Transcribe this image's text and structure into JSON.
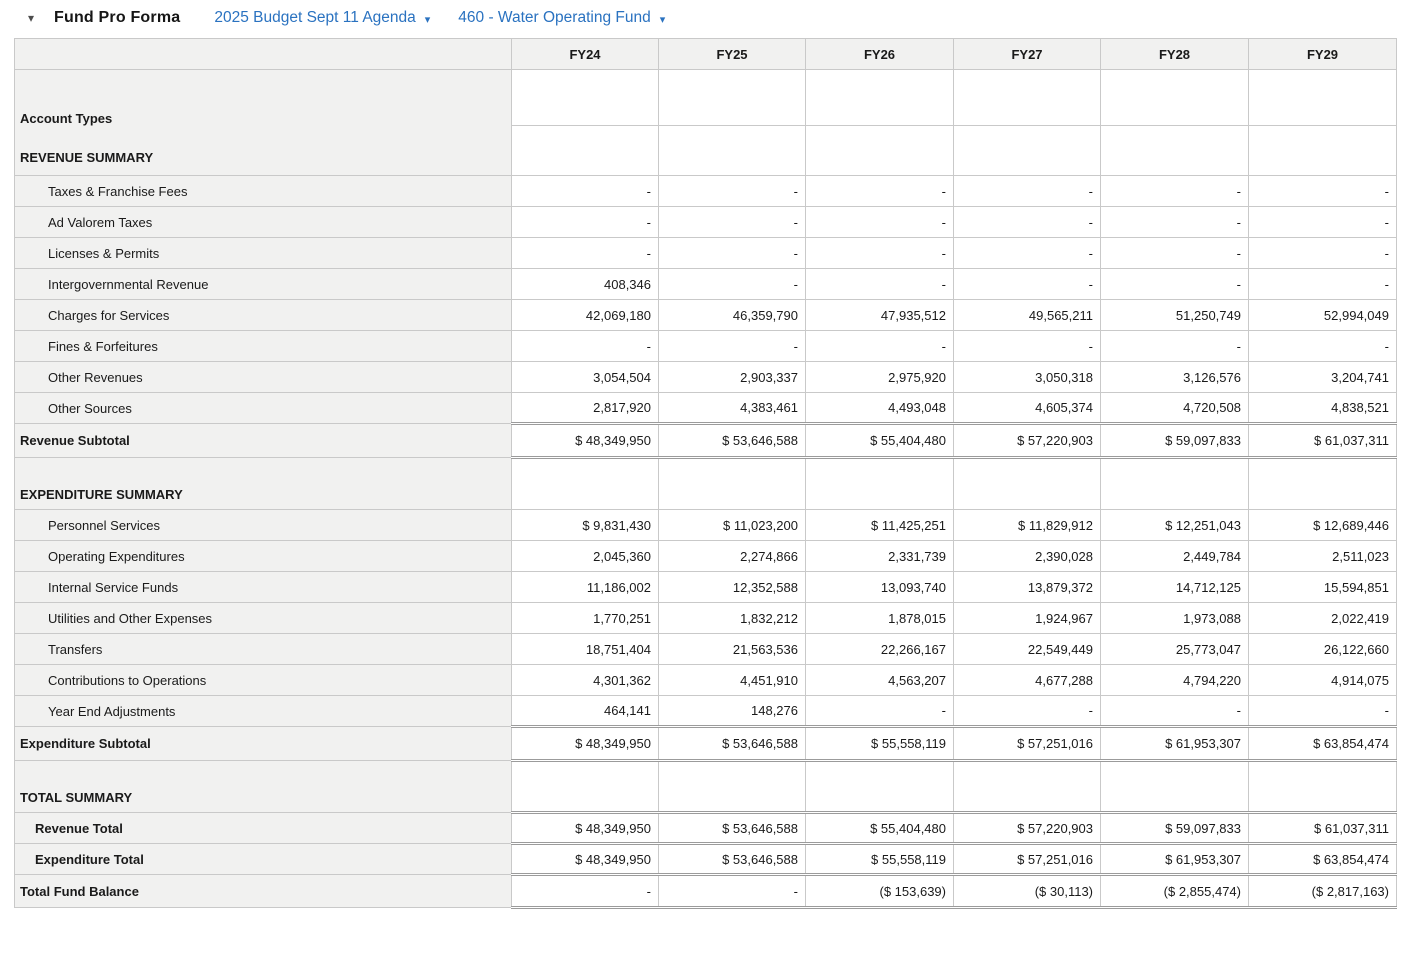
{
  "header": {
    "collapse_icon": "▾",
    "title": "Fund Pro Forma",
    "dropdowns": [
      {
        "label": "2025 Budget Sept 11 Agenda",
        "caret": "▾"
      },
      {
        "label": "460 - Water Operating Fund",
        "caret": "▾"
      }
    ]
  },
  "colors": {
    "link_blue": "#2a72c0",
    "label_background": "#f1f1f0",
    "grid_border": "#c9c9c9",
    "double_border": "#9b9b9b"
  },
  "table": {
    "columns": [
      "FY24",
      "FY25",
      "FY26",
      "FY27",
      "FY28",
      "FY29"
    ],
    "rows": [
      {
        "kind": "dualheader",
        "labels": [
          "Account Types",
          "REVENUE SUMMARY"
        ],
        "h1": 56,
        "h2": 50
      },
      {
        "kind": "item",
        "label": "Taxes & Franchise Fees",
        "values": [
          "-",
          "-",
          "-",
          "-",
          "-",
          "-"
        ]
      },
      {
        "kind": "item",
        "label": "Ad Valorem Taxes",
        "values": [
          "-",
          "-",
          "-",
          "-",
          "-",
          "-"
        ]
      },
      {
        "kind": "item",
        "label": "Licenses & Permits",
        "values": [
          "-",
          "-",
          "-",
          "-",
          "-",
          "-"
        ]
      },
      {
        "kind": "item",
        "label": "Intergovernmental Revenue",
        "values": [
          "408,346",
          "-",
          "-",
          "-",
          "-",
          "-"
        ]
      },
      {
        "kind": "item",
        "label": "Charges for Services",
        "values": [
          "42,069,180",
          "46,359,790",
          "47,935,512",
          "49,565,211",
          "51,250,749",
          "52,994,049"
        ]
      },
      {
        "kind": "item",
        "label": "Fines & Forfeitures",
        "values": [
          "-",
          "-",
          "-",
          "-",
          "-",
          "-"
        ]
      },
      {
        "kind": "item",
        "label": "Other Revenues",
        "values": [
          "3,054,504",
          "2,903,337",
          "2,975,920",
          "3,050,318",
          "3,126,576",
          "3,204,741"
        ]
      },
      {
        "kind": "item",
        "label": "Other Sources",
        "values": [
          "2,817,920",
          "4,383,461",
          "4,493,048",
          "4,605,374",
          "4,720,508",
          "4,838,521"
        ]
      },
      {
        "kind": "subtotal",
        "label": "Revenue Subtotal",
        "values": [
          "$ 48,349,950",
          "$ 53,646,588",
          "$ 55,404,480",
          "$ 57,220,903",
          "$ 59,097,833",
          "$ 61,037,311"
        ]
      },
      {
        "kind": "section",
        "label": "EXPENDITURE SUMMARY",
        "h": 52
      },
      {
        "kind": "item",
        "label": "Personnel Services",
        "values": [
          "$ 9,831,430",
          "$ 11,023,200",
          "$ 11,425,251",
          "$ 11,829,912",
          "$ 12,251,043",
          "$ 12,689,446"
        ]
      },
      {
        "kind": "item",
        "label": "Operating Expenditures",
        "values": [
          "2,045,360",
          "2,274,866",
          "2,331,739",
          "2,390,028",
          "2,449,784",
          "2,511,023"
        ]
      },
      {
        "kind": "item",
        "label": "Internal Service Funds",
        "values": [
          "11,186,002",
          "12,352,588",
          "13,093,740",
          "13,879,372",
          "14,712,125",
          "15,594,851"
        ]
      },
      {
        "kind": "item",
        "label": "Utilities and Other Expenses",
        "values": [
          "1,770,251",
          "1,832,212",
          "1,878,015",
          "1,924,967",
          "1,973,088",
          "2,022,419"
        ]
      },
      {
        "kind": "item",
        "label": "Transfers",
        "values": [
          "18,751,404",
          "21,563,536",
          "22,266,167",
          "22,549,449",
          "25,773,047",
          "26,122,660"
        ]
      },
      {
        "kind": "item",
        "label": "Contributions to Operations",
        "values": [
          "4,301,362",
          "4,451,910",
          "4,563,207",
          "4,677,288",
          "4,794,220",
          "4,914,075"
        ]
      },
      {
        "kind": "item",
        "label": "Year End Adjustments",
        "values": [
          "464,141",
          "148,276",
          "-",
          "-",
          "-",
          "-"
        ]
      },
      {
        "kind": "subtotal",
        "label": "Expenditure Subtotal",
        "values": [
          "$ 48,349,950",
          "$ 53,646,588",
          "$ 55,558,119",
          "$ 57,251,016",
          "$ 61,953,307",
          "$ 63,854,474"
        ]
      },
      {
        "kind": "section",
        "label": "TOTAL SUMMARY",
        "h": 52
      },
      {
        "kind": "total",
        "label": "Revenue Total",
        "values": [
          "$ 48,349,950",
          "$ 53,646,588",
          "$ 55,404,480",
          "$ 57,220,903",
          "$ 59,097,833",
          "$ 61,037,311"
        ]
      },
      {
        "kind": "total",
        "label": "Expenditure Total",
        "values": [
          "$ 48,349,950",
          "$ 53,646,588",
          "$ 55,558,119",
          "$ 57,251,016",
          "$ 61,953,307",
          "$ 63,854,474"
        ]
      },
      {
        "kind": "grand",
        "label": "Total Fund Balance",
        "values": [
          "-",
          "-",
          "($ 153,639)",
          "($ 30,113)",
          "($ 2,855,474)",
          "($ 2,817,163)"
        ]
      }
    ]
  }
}
